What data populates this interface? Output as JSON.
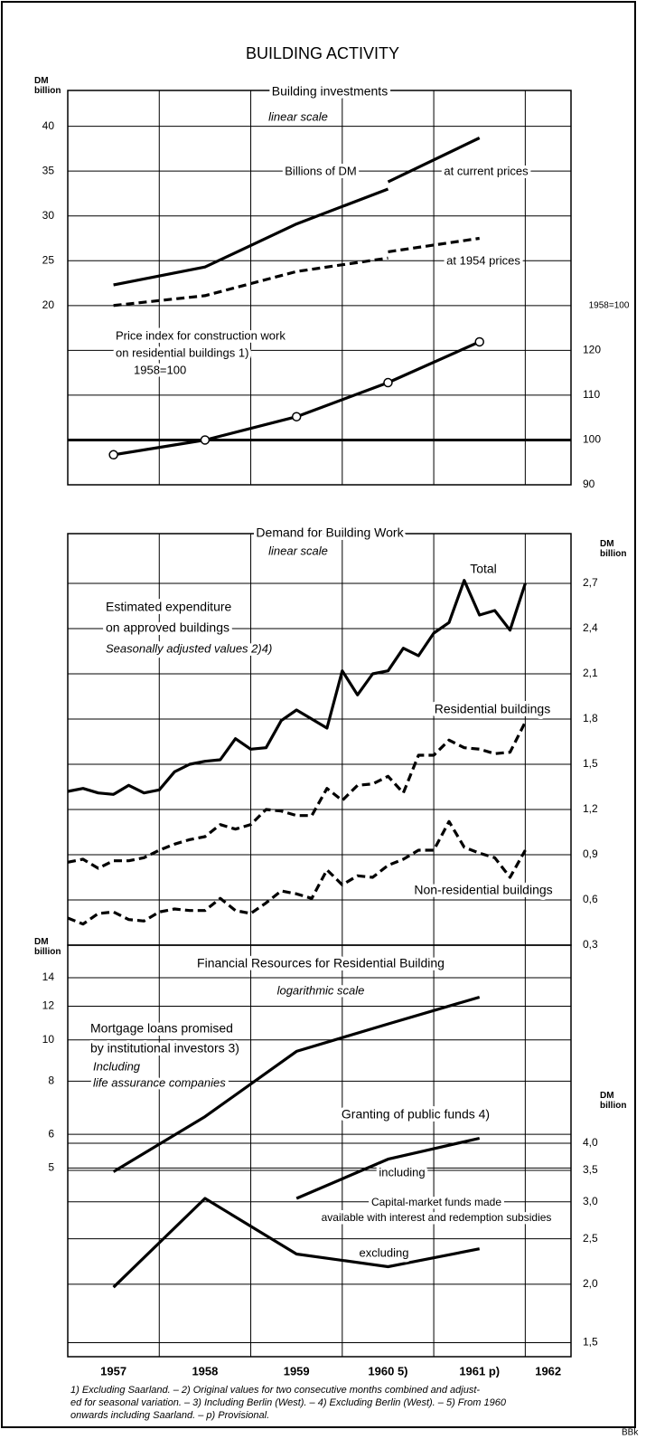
{
  "title": "BUILDING ACTIVITY",
  "footnotes": [
    "1) Excluding Saarland. – 2) Original values for two consecutive months combined and adjust-",
    "ed for seasonal variation. – 3) Including Berlin (West). – 4) Excluding Berlin (West). – 5) From 1960",
    "onwards including Saarland. – p) Provisional."
  ],
  "credit": "BBk",
  "chart_data": [
    {
      "type": "line",
      "title": "Building investments",
      "subtitle": "linear scale",
      "ylabel": "DM billion",
      "y2label": "1958=100",
      "annotations": [
        "Billions of DM"
      ],
      "xlim": [
        1957,
        1962.5
      ],
      "xgrid": [
        1958,
        1959,
        1960,
        1961,
        1962
      ],
      "ylim": [
        0,
        44
      ],
      "yticks": [
        20,
        25,
        30,
        35,
        40
      ],
      "y2lim": [
        90,
        178
      ],
      "y2ticks": [
        90,
        100,
        110,
        120
      ],
      "y2_reference": 100,
      "grid": true,
      "series": [
        {
          "name": "at current prices",
          "color": "#000000",
          "dash": false,
          "x": [
            1957.5,
            1958.5,
            1959.5,
            1960.5,
            1960.5,
            1960.5,
            1961.5
          ],
          "values": [
            22.3,
            24.3,
            29.1,
            33.0,
            null,
            33.8,
            38.7
          ]
        },
        {
          "name": "at 1954 prices",
          "color": "#000000",
          "dash": true,
          "x": [
            1957.5,
            1958.5,
            1959.5,
            1960.5,
            1960.5,
            1960.5,
            1961.5
          ],
          "values": [
            20.0,
            21.1,
            23.8,
            25.3,
            null,
            26.0,
            27.5
          ]
        },
        {
          "label_lines": [
            "Price index for construction work",
            "on residential buildings 1)",
            "1958=100"
          ],
          "color": "#000000",
          "dash": false,
          "marker": "circle",
          "axis": "y2",
          "x": [
            1957.5,
            1958.5,
            1959.5,
            1960.5,
            1961.5
          ],
          "values": [
            96.7,
            100,
            105.2,
            112.8,
            121.9
          ]
        }
      ]
    },
    {
      "type": "line",
      "title": "Demand for Building Work",
      "subtitle": "linear scale",
      "ylabel": "DM billion",
      "yaxis_position": "right",
      "annotations": [
        "Estimated expenditure",
        "on approved buildings",
        "Seasonally adjusted values 2)4)"
      ],
      "xlim": [
        1957,
        1962.5
      ],
      "xgrid": [
        1958,
        1959,
        1960,
        1961,
        1962
      ],
      "ylim": [
        0.3,
        3.03
      ],
      "yticks": [
        {
          "value": 0.3,
          "label": "0,3"
        },
        {
          "value": 0.6,
          "label": "0,6"
        },
        {
          "value": 0.9,
          "label": "0,9"
        },
        {
          "value": 1.2,
          "label": "1,2"
        },
        {
          "value": 1.5,
          "label": "1,5"
        },
        {
          "value": 1.8,
          "label": "1,8"
        },
        {
          "value": 2.1,
          "label": "2,1"
        },
        {
          "value": 2.4,
          "label": "2,4"
        },
        {
          "value": 2.7,
          "label": "2,7"
        }
      ],
      "grid": true,
      "x": [
        1957,
        1957.167,
        1957.333,
        1957.5,
        1957.667,
        1957.833,
        1958,
        1958.167,
        1958.333,
        1958.5,
        1958.667,
        1958.833,
        1959,
        1959.167,
        1959.333,
        1959.5,
        1959.667,
        1959.833,
        1960,
        1960.167,
        1960.333,
        1960.5,
        1960.667,
        1960.833,
        1961,
        1961.167,
        1961.333,
        1961.5,
        1961.667,
        1961.833,
        1962
      ],
      "series": [
        {
          "name": "Total",
          "color": "#000000",
          "dash": false,
          "values": [
            1.32,
            1.34,
            1.31,
            1.3,
            1.36,
            1.31,
            1.33,
            1.45,
            1.5,
            1.52,
            1.53,
            1.67,
            1.6,
            1.61,
            1.79,
            1.86,
            1.8,
            1.74,
            2.12,
            1.96,
            2.1,
            2.12,
            2.27,
            2.22,
            2.37,
            2.44,
            2.72,
            2.49,
            2.52,
            2.39,
            2.7
          ]
        },
        {
          "name": "Residential buildings",
          "color": "#000000",
          "dash": true,
          "values": [
            0.85,
            0.87,
            0.81,
            0.86,
            0.86,
            0.88,
            0.93,
            0.97,
            1.0,
            1.02,
            1.1,
            1.07,
            1.1,
            1.2,
            1.19,
            1.16,
            1.16,
            1.34,
            1.26,
            1.36,
            1.37,
            1.42,
            1.31,
            1.56,
            1.56,
            1.66,
            1.61,
            1.6,
            1.57,
            1.58,
            1.78
          ]
        },
        {
          "name": "Non-residential buildings",
          "color": "#000000",
          "dash": true,
          "values": [
            0.48,
            0.44,
            0.51,
            0.52,
            0.47,
            0.46,
            0.52,
            0.54,
            0.53,
            0.53,
            0.61,
            0.53,
            0.51,
            0.58,
            0.66,
            0.64,
            0.61,
            0.8,
            0.7,
            0.76,
            0.75,
            0.83,
            0.87,
            0.93,
            0.93,
            1.12,
            0.95,
            0.91,
            0.88,
            0.75,
            0.93
          ]
        }
      ]
    },
    {
      "type": "line",
      "title": "Financial Resources for Residential Building",
      "subtitle": "logarithmic scale",
      "ylabel": "DM billion",
      "y2label": "DM billion",
      "log_scale": true,
      "annotations": [
        "Granting of public funds 4)",
        "Capital-market funds made",
        "available with interest and redemption subsidies"
      ],
      "xlim": [
        1957,
        1962.5
      ],
      "xgrid": [
        1958,
        1959,
        1960,
        1961,
        1962
      ],
      "xticks": [
        {
          "value": 1957.5,
          "label": "1957"
        },
        {
          "value": 1958.5,
          "label": "1958"
        },
        {
          "value": 1959.5,
          "label": "1959"
        },
        {
          "value": 1960.5,
          "label": "1960 5)"
        },
        {
          "value": 1961.5,
          "label": "1961 p)"
        },
        {
          "value": 1962.25,
          "label": "1962"
        }
      ],
      "ylim": [
        1.8,
        16.7
      ],
      "yticks": [
        5,
        6,
        8,
        10,
        12,
        14
      ],
      "y2lim": [
        1.4,
        10.6
      ],
      "y2ticks": [
        {
          "value": 1.5,
          "label": "1,5"
        },
        {
          "value": 2.0,
          "label": "2,0"
        },
        {
          "value": 2.5,
          "label": "2,5"
        },
        {
          "value": 3.0,
          "label": "3,0"
        },
        {
          "value": 3.5,
          "label": "3,5"
        },
        {
          "value": 4.0,
          "label": "4,0"
        }
      ],
      "grid": true,
      "series": [
        {
          "label_lines": [
            "Mortgage loans promised",
            "by institutional investors 3)",
            "Including",
            "life assurance companies"
          ],
          "color": "#000000",
          "dash": false,
          "x": [
            1957.5,
            1958.5,
            1959.5,
            1960.5,
            1961.5
          ],
          "values": [
            4.9,
            6.6,
            9.4,
            10.9,
            12.6
          ]
        },
        {
          "name": "including",
          "color": "#000000",
          "dash": false,
          "axis": "y2",
          "x": [
            1959.5,
            1960.5,
            1961.5
          ],
          "values": [
            3.05,
            3.7,
            4.1
          ]
        },
        {
          "name": "excluding",
          "color": "#000000",
          "dash": false,
          "axis": "y2",
          "x": [
            1957.5,
            1958.5,
            1959.5,
            1960.5,
            1961.5
          ],
          "values": [
            1.97,
            3.05,
            2.32,
            2.18,
            2.38
          ]
        }
      ]
    }
  ]
}
